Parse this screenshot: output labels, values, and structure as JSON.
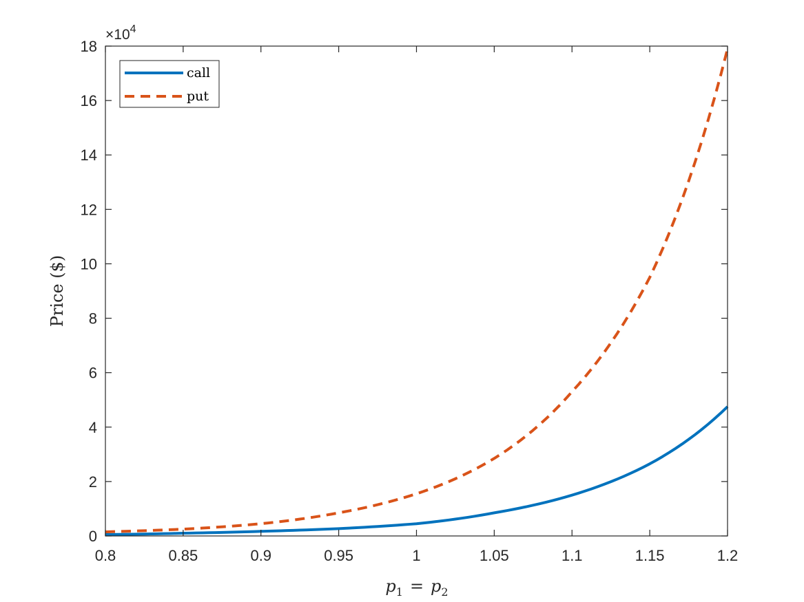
{
  "chart_data": {
    "type": "line",
    "xlabel": "p1 = p2",
    "xlabel_parts": {
      "var1": "p",
      "sub1": "1",
      "eq": "=",
      "var2": "p",
      "sub2": "2"
    },
    "ylabel": "Price ($)",
    "y_exponent_label": {
      "base": "×10",
      "power": "4"
    },
    "xlim": [
      0.8,
      1.2
    ],
    "ylim": [
      0,
      18
    ],
    "x_ticks": [
      0.8,
      0.85,
      0.9,
      0.95,
      1.0,
      1.05,
      1.1,
      1.15,
      1.2
    ],
    "x_tick_labels": [
      "0.8",
      "0.85",
      "0.9",
      "0.95",
      "1",
      "1.05",
      "1.1",
      "1.15",
      "1.2"
    ],
    "y_ticks": [
      0,
      2,
      4,
      6,
      8,
      10,
      12,
      14,
      16,
      18
    ],
    "y_tick_labels": [
      "0",
      "2",
      "4",
      "6",
      "8",
      "10",
      "12",
      "14",
      "16",
      "18"
    ],
    "grid": false,
    "legend_position": "top-left",
    "x": [
      0.8,
      0.85,
      0.9,
      0.95,
      1.0,
      1.05,
      1.1,
      1.15,
      1.2
    ],
    "series": [
      {
        "name": "call",
        "style": "solid",
        "color": "#0072BD",
        "values": [
          0.05,
          0.1,
          0.17,
          0.27,
          0.45,
          0.85,
          1.5,
          2.65,
          4.75
        ]
      },
      {
        "name": "put",
        "style": "dashed",
        "color": "#D95319",
        "values": [
          0.15,
          0.25,
          0.45,
          0.85,
          1.55,
          2.85,
          5.3,
          9.5,
          17.9
        ]
      }
    ]
  }
}
